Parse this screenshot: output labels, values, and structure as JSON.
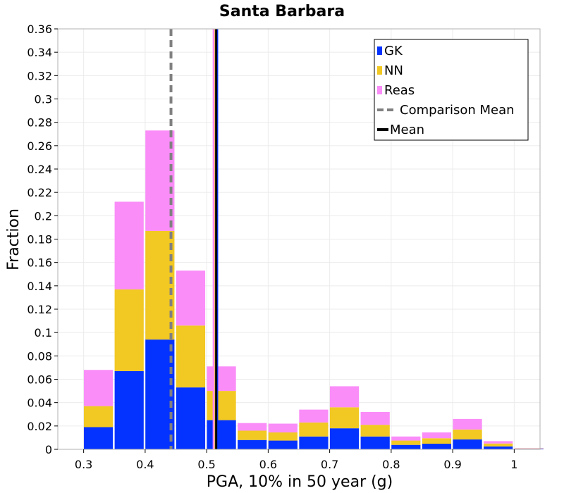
{
  "chart_data": {
    "type": "bar",
    "stacked": true,
    "title": "Santa Barbara",
    "xlabel": "PGA, 10% in 50 year (g)",
    "ylabel": "Fraction",
    "xlim": [
      0.258,
      1.042
    ],
    "ylim": [
      0,
      0.36
    ],
    "x_ticks": [
      "0.3",
      "0.4",
      "0.5",
      "0.6",
      "0.7",
      "0.8",
      "0.9",
      "1"
    ],
    "x_tick_values": [
      0.3,
      0.4,
      0.5,
      0.6,
      0.7,
      0.8,
      0.9,
      1.0
    ],
    "y_ticks": [
      "0",
      "0.02",
      "0.04",
      "0.06",
      "0.08",
      "0.1",
      "0.12",
      "0.14",
      "0.16",
      "0.18",
      "0.2",
      "0.22",
      "0.24",
      "0.26",
      "0.28",
      "0.3",
      "0.32",
      "0.34",
      "0.36"
    ],
    "y_tick_values": [
      0,
      0.02,
      0.04,
      0.06,
      0.08,
      0.1,
      0.12,
      0.14,
      0.16,
      0.18,
      0.2,
      0.22,
      0.24,
      0.26,
      0.28,
      0.3,
      0.32,
      0.34,
      0.36
    ],
    "bin_width": 0.05,
    "x": [
      0.274,
      0.324,
      0.374,
      0.424,
      0.474,
      0.524,
      0.574,
      0.624,
      0.674,
      0.724,
      0.774,
      0.824,
      0.874,
      0.924,
      0.974,
      1.024
    ],
    "series": [
      {
        "name": "GK",
        "color": "#0433ff",
        "values": [
          0,
          0.019,
          0.067,
          0.094,
          0.053,
          0.025,
          0.008,
          0.0075,
          0.011,
          0.018,
          0.011,
          0.0038,
          0.0048,
          0.0085,
          0.0025,
          0.0005
        ]
      },
      {
        "name": "NN",
        "color": "#f2c822",
        "values": [
          0,
          0.018,
          0.07,
          0.093,
          0.053,
          0.025,
          0.008,
          0.007,
          0.012,
          0.018,
          0.01,
          0.0037,
          0.0047,
          0.0085,
          0.0025,
          0.0003
        ]
      },
      {
        "name": "Reas",
        "color": "#fa8df8",
        "values": [
          0,
          0.031,
          0.075,
          0.086,
          0.047,
          0.021,
          0.0065,
          0.0075,
          0.011,
          0.018,
          0.011,
          0.0035,
          0.005,
          0.009,
          0.002,
          0.0002
        ]
      }
    ],
    "vertical_lines": [
      {
        "name": "Comparison Mean",
        "x": 0.442,
        "color": "#808080",
        "style": "dashed"
      },
      {
        "name": "Reas mean",
        "x": 0.5115,
        "color": "#fa8df8",
        "style": "solid"
      },
      {
        "name": "NN mean",
        "x": 0.5145,
        "color": "#f2c822",
        "style": "solid"
      },
      {
        "name": "GK mean",
        "x": 0.517,
        "color": "#0433ff",
        "style": "solid"
      },
      {
        "name": "Mean",
        "x": 0.5155,
        "color": "#000000",
        "style": "solid"
      }
    ],
    "grid": true,
    "legend_position": "top-right",
    "legend": [
      {
        "label": "GK",
        "type": "box",
        "color": "#0433ff"
      },
      {
        "label": "NN",
        "type": "box",
        "color": "#f2c822"
      },
      {
        "label": "Reas",
        "type": "box",
        "color": "#fa8df8"
      },
      {
        "label": "Comparison Mean",
        "type": "dashed-line",
        "color": "#808080"
      },
      {
        "label": "Mean",
        "type": "solid-line",
        "color": "#000000"
      }
    ]
  }
}
